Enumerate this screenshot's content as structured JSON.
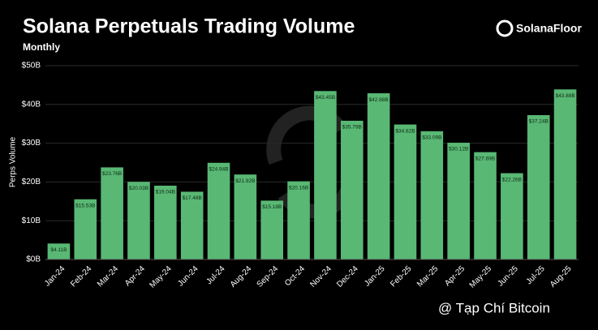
{
  "chart_data": {
    "type": "bar",
    "title": "Solana Perpetuals Trading Volume",
    "subtitle": "Monthly",
    "brand": "SolanaFloor",
    "y_label": "Perps Volume",
    "watermark": "@ Tạp Chí Bitcoin",
    "color": "#59b874",
    "grid": true,
    "categories": [
      "Jan-24",
      "Feb-24",
      "Mar-24",
      "Apr-24",
      "May-24",
      "Jun-24",
      "Jul-24",
      "Aug-24",
      "Sep-24",
      "Oct-24",
      "Nov-24",
      "Dec-24",
      "Jan-25",
      "Feb-25",
      "Mar-25",
      "Apr-25",
      "May-25",
      "Jun-25",
      "Jul-25",
      "Aug-25"
    ],
    "values": [
      4.11,
      15.53,
      23.76,
      20.03,
      19.04,
      17.48,
      24.94,
      21.92,
      15.18,
      20.16,
      43.45,
      35.79,
      42.88,
      34.82,
      33.09,
      30.12,
      27.69,
      22.26,
      37.24,
      43.88
    ],
    "value_labels": [
      "$4.11B",
      "$15.53B",
      "$23.76B",
      "$20.03B",
      "$19.04B",
      "$17.48B",
      "$24.94B",
      "$21.92B",
      "$15.18B",
      "$20.16B",
      "$43.45B",
      "$35.79B",
      "$42.88B",
      "$34.82B",
      "$33.09B",
      "$30.12B",
      "$27.69B",
      "$22.26B",
      "$37.24B",
      "$43.88B"
    ],
    "ylim": [
      0,
      50
    ],
    "yticks": [
      {
        "value": 0,
        "label": "$0B"
      },
      {
        "value": 10,
        "label": "$10B"
      },
      {
        "value": 20,
        "label": "$20B"
      },
      {
        "value": 30,
        "label": "$30B"
      },
      {
        "value": 40,
        "label": "$40B"
      },
      {
        "value": 50,
        "label": "$50B"
      }
    ]
  }
}
